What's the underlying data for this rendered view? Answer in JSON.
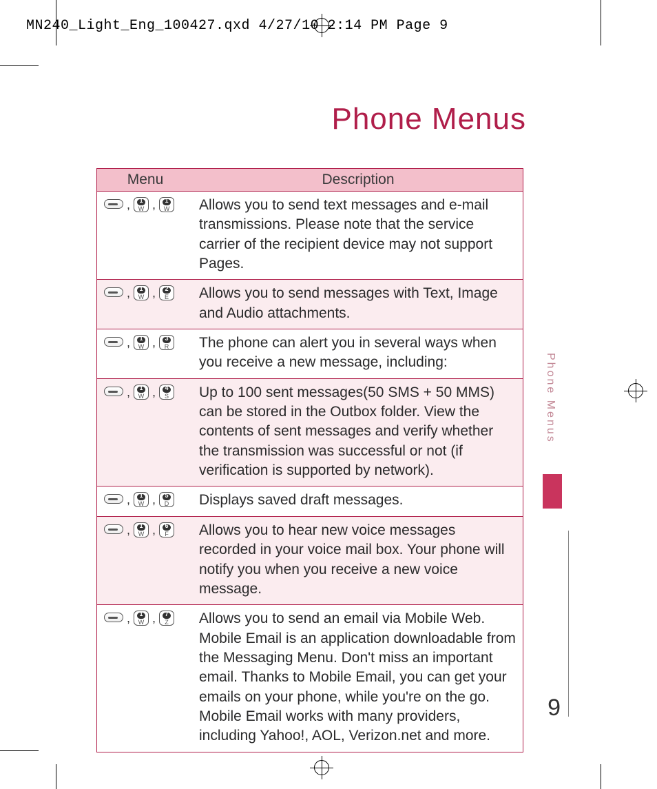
{
  "header": "MN240_Light_Eng_100427.qxd  4/27/10  2:14 PM  Page 9",
  "title": "Phone Menus",
  "side_label": "Phone Menus",
  "page_number": "9",
  "table": {
    "head_menu": "Menu",
    "head_desc": "Description",
    "rows": [
      {
        "keys": [
          {
            "type": "soft"
          },
          {
            "type": "key",
            "num": "1",
            "let": "W"
          },
          {
            "type": "key",
            "num": "1",
            "let": "W"
          }
        ],
        "desc": "Allows you to send text messages and e-mail transmissions. Please note that the service carrier of the recipient device may not support Pages."
      },
      {
        "keys": [
          {
            "type": "soft"
          },
          {
            "type": "key",
            "num": "1",
            "let": "W"
          },
          {
            "type": "key",
            "num": "2",
            "let": "E"
          }
        ],
        "desc": "Allows you to send messages with Text, Image and Audio attachments."
      },
      {
        "keys": [
          {
            "type": "soft"
          },
          {
            "type": "key",
            "num": "1",
            "let": "W"
          },
          {
            "type": "key",
            "num": "3",
            "let": "R"
          }
        ],
        "desc": "The phone can alert you in several ways when you receive a new message, including:"
      },
      {
        "keys": [
          {
            "type": "soft"
          },
          {
            "type": "key",
            "num": "1",
            "let": "W"
          },
          {
            "type": "key",
            "num": "4",
            "let": "S"
          }
        ],
        "desc": "Up to 100 sent messages(50 SMS + 50 MMS) can be stored in the Outbox folder. View the contents of sent messages and verify whether the transmission was successful or not (if verification is supported by network)."
      },
      {
        "keys": [
          {
            "type": "soft"
          },
          {
            "type": "key",
            "num": "1",
            "let": "W"
          },
          {
            "type": "key",
            "num": "5",
            "let": "D"
          }
        ],
        "desc": "Displays saved draft messages."
      },
      {
        "keys": [
          {
            "type": "soft"
          },
          {
            "type": "key",
            "num": "1",
            "let": "W"
          },
          {
            "type": "key",
            "num": "6",
            "let": "F"
          }
        ],
        "desc": "Allows you to hear new voice messages recorded in your voice mail box. Your phone will notify you when you receive a new voice message."
      },
      {
        "keys": [
          {
            "type": "soft"
          },
          {
            "type": "key",
            "num": "1",
            "let": "W"
          },
          {
            "type": "key",
            "num": "7",
            "let": "Z"
          }
        ],
        "desc": "Allows you to send an email via Mobile Web. Mobile Email is an application downloadable from the Messaging Menu. Don't miss an important email. Thanks to Mobile Email, you can get your emails on your phone, while you're on the go. Mobile Email works with many providers, including Yahoo!, AOL, Verizon.net and more."
      }
    ]
  }
}
